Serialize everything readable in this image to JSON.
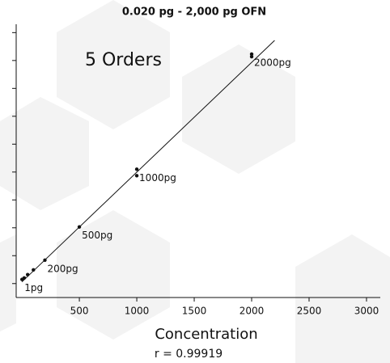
{
  "chart_data": {
    "type": "scatter",
    "title": "0.020 pg - 2,000 pg OFN",
    "annotation": "5 Orders",
    "x_label": "Concentration",
    "subtitle": "r = 0.99919",
    "x": [
      1,
      20,
      50,
      100,
      200,
      500,
      1000,
      1000,
      2000,
      2000
    ],
    "values": [
      0.15,
      0.2,
      0.32,
      0.49,
      0.84,
      2.03,
      4.1,
      3.87,
      8.23,
      8.14
    ],
    "value_labels": [
      "1pg",
      null,
      null,
      null,
      "200pg",
      "500pg",
      "1000pg",
      null,
      "2000pg",
      null
    ],
    "color": "#111111",
    "fit_line": {
      "x": [
        0,
        2200
      ],
      "values": [
        0.06,
        8.72
      ]
    },
    "xlim": [
      -50,
      3120
    ],
    "xticks": [
      500,
      1000,
      1500,
      2000,
      2500,
      3000
    ],
    "ylim": [
      -0.5,
      9.3
    ],
    "yticks": [
      0,
      1,
      2,
      3,
      4,
      5,
      6,
      7,
      8,
      9
    ]
  }
}
